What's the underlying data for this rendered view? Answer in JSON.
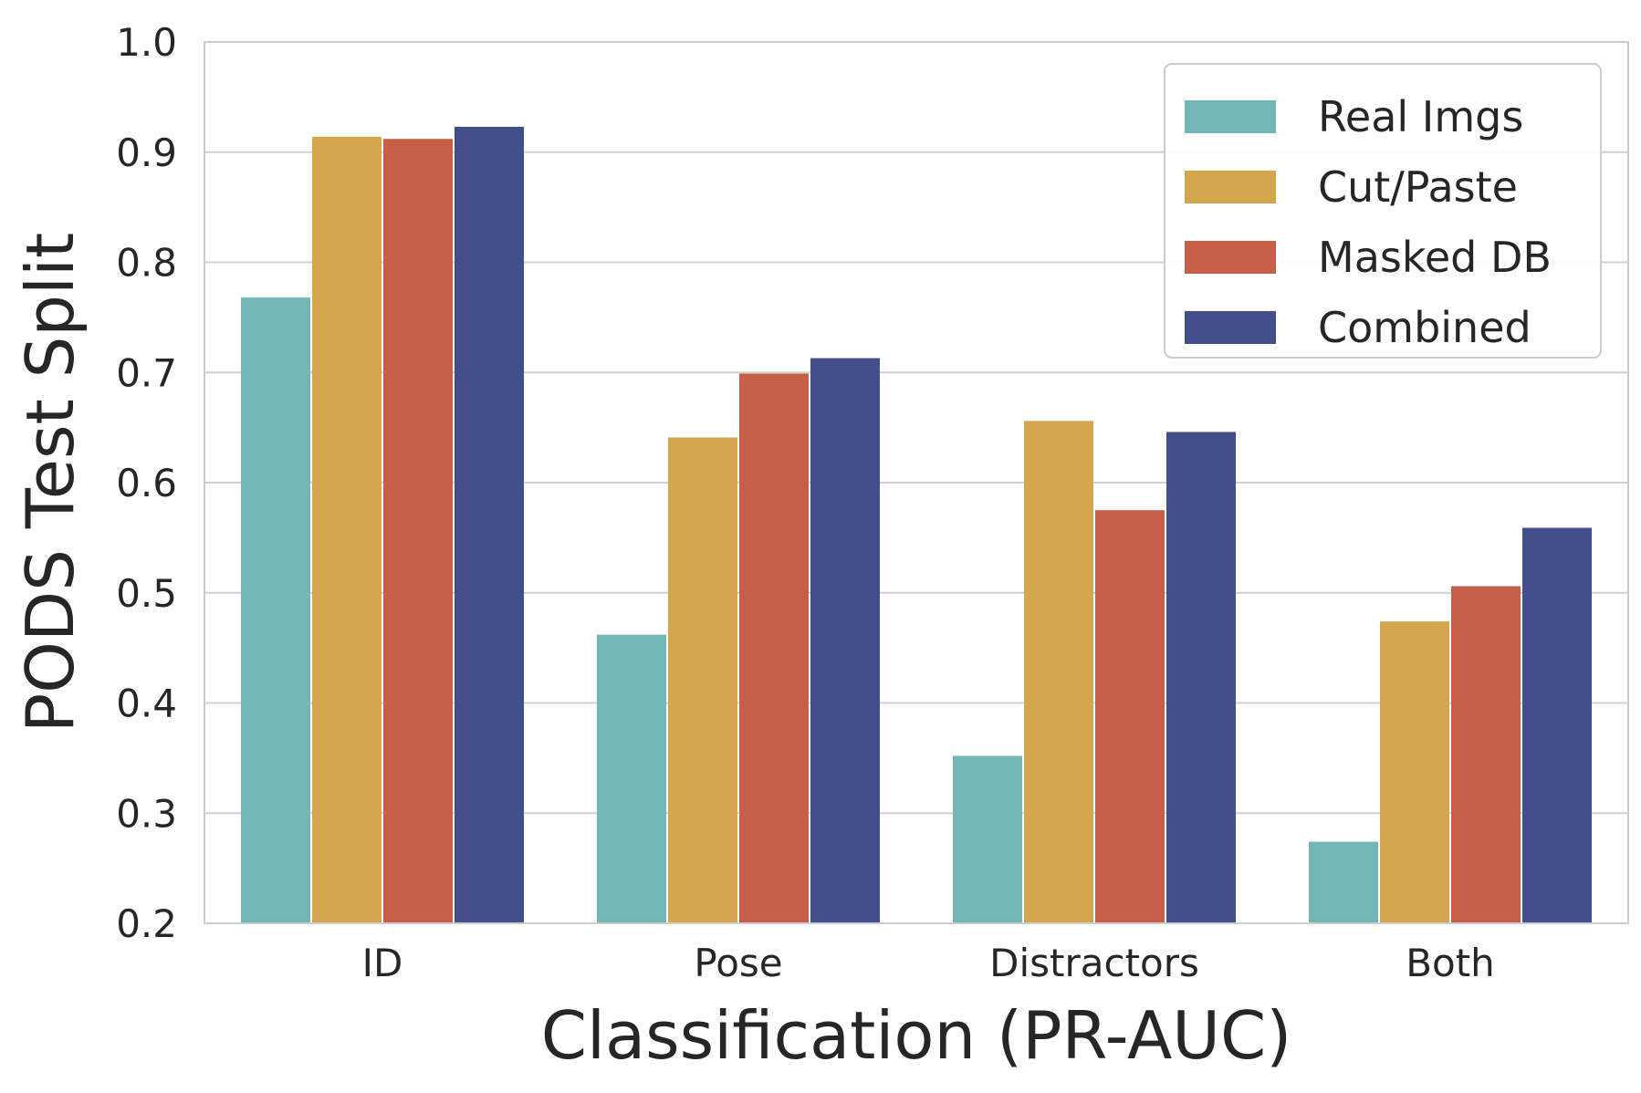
{
  "chart_data": {
    "type": "bar",
    "categories": [
      "ID",
      "Pose",
      "Distractors",
      "Both"
    ],
    "series": [
      {
        "name": "Real Imgs",
        "color": "#72b6b6",
        "values": [
          0.768,
          0.462,
          0.352,
          0.274
        ]
      },
      {
        "name": "Cut/Paste",
        "color": "#d4a64d",
        "values": [
          0.914,
          0.641,
          0.656,
          0.474
        ]
      },
      {
        "name": "Masked DB",
        "color": "#c75e48",
        "values": [
          0.912,
          0.699,
          0.575,
          0.506
        ]
      },
      {
        "name": "Combined",
        "color": "#424f8b",
        "values": [
          0.923,
          0.713,
          0.646,
          0.559
        ]
      }
    ],
    "xlabel": "Classification (PR-AUC)",
    "ylabel": "PODS Test Split",
    "ylim": [
      0.2,
      1.0
    ],
    "yticks": [
      "0.2",
      "0.3",
      "0.4",
      "0.5",
      "0.6",
      "0.7",
      "0.8",
      "0.9",
      "1.0"
    ],
    "grid": true,
    "legend_position": "top-right"
  }
}
